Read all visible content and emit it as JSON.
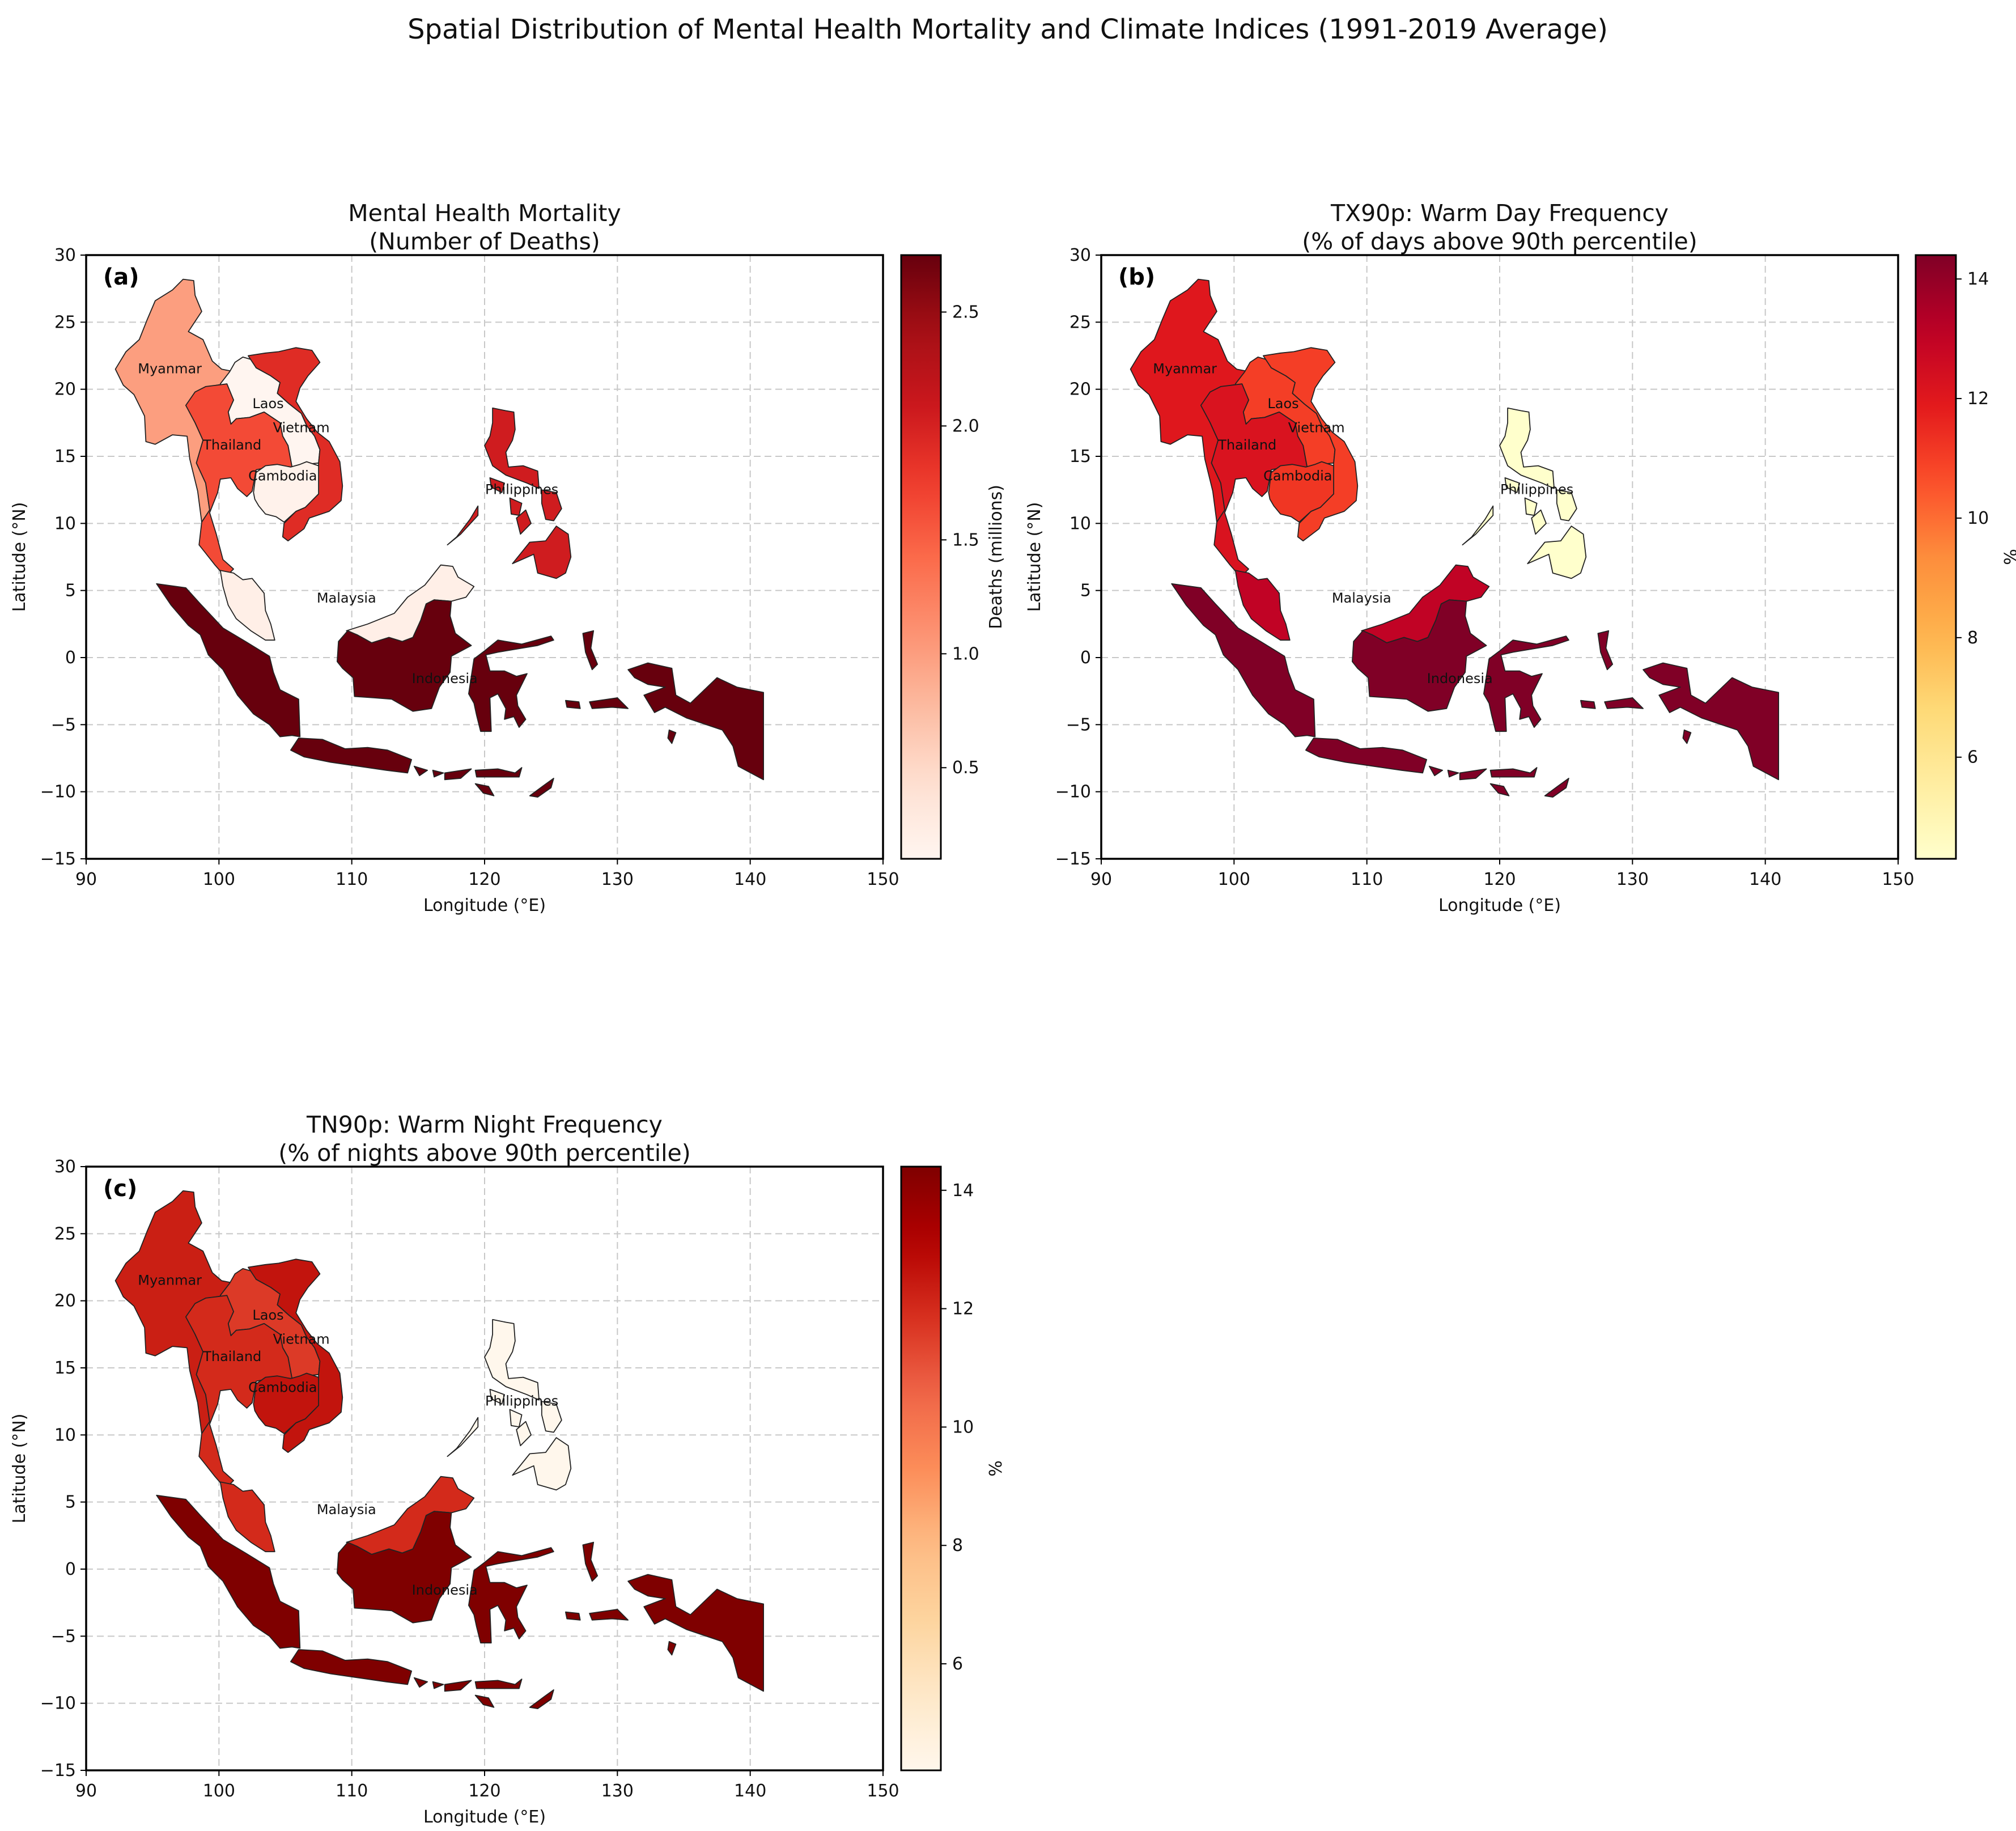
{
  "figure": {
    "suptitle": "Spatial Distribution of Mental Health Mortality and Climate Indices (1991-2019 Average)"
  },
  "axes": {
    "xlabel": "Longitude (°E)",
    "ylabel": "Latitude (°N)",
    "xlim": [
      90,
      150
    ],
    "ylim": [
      -15,
      30
    ],
    "xticks": [
      90,
      100,
      110,
      120,
      130,
      140,
      150
    ],
    "yticks": [
      30,
      25,
      20,
      15,
      10,
      5,
      0,
      -5,
      -10,
      -15
    ],
    "grid": true
  },
  "countries": [
    {
      "name": "Myanmar",
      "label_lon": 96.3,
      "label_lat": 21.2
    },
    {
      "name": "Laos",
      "label_lon": 103.7,
      "label_lat": 18.6
    },
    {
      "name": "Vietnam",
      "label_lon": 106.2,
      "label_lat": 16.8
    },
    {
      "name": "Thailand",
      "label_lon": 101.0,
      "label_lat": 15.5
    },
    {
      "name": "Cambodia",
      "label_lon": 104.8,
      "label_lat": 13.2
    },
    {
      "name": "Philippines",
      "label_lon": 122.8,
      "label_lat": 12.2
    },
    {
      "name": "Malaysia",
      "label_lon": 109.6,
      "label_lat": 4.1
    },
    {
      "name": "Indonesia",
      "label_lon": 117.0,
      "label_lat": -1.9
    }
  ],
  "panels": [
    {
      "id": "a",
      "panel_label": "(a)",
      "title": "Mental Health Mortality\n(Number of Deaths)",
      "colorbar_label": "Deaths (millions)",
      "cmap": "Reds",
      "vmin": 0.1,
      "vmax": 2.75,
      "colorbar_ticks": [
        "0.5",
        "1.0",
        "1.5",
        "2.0",
        "2.5"
      ],
      "values": {
        "Myanmar": 1.0,
        "Laos": 0.1,
        "Vietnam": 1.9,
        "Thailand": 1.65,
        "Cambodia": 0.15,
        "Philippines": 2.05,
        "Malaysia": 0.2,
        "Indonesia": 2.75
      }
    },
    {
      "id": "b",
      "panel_label": "(b)",
      "title": "TX90p: Warm Day Frequency\n(% of days above 90th percentile)",
      "colorbar_label": "%",
      "cmap": "YlOrRd",
      "vmin": 4.3,
      "vmax": 14.4,
      "colorbar_ticks": [
        "6",
        "8",
        "10",
        "12",
        "14"
      ],
      "values": {
        "Myanmar": 12.0,
        "Laos": 11.0,
        "Vietnam": 11.0,
        "Thailand": 12.2,
        "Cambodia": 11.2,
        "Philippines": 4.3,
        "Malaysia": 13.0,
        "Indonesia": 14.4
      }
    },
    {
      "id": "c",
      "panel_label": "(c)",
      "title": "TN90p: Warm Night Frequency\n(% of nights above 90th percentile)",
      "colorbar_label": "%",
      "cmap": "OrRd",
      "vmin": 4.2,
      "vmax": 14.4,
      "colorbar_ticks": [
        "6",
        "8",
        "10",
        "12",
        "14"
      ],
      "values": {
        "Myanmar": 12.3,
        "Laos": 11.6,
        "Vietnam": 12.6,
        "Thailand": 12.0,
        "Cambodia": 12.6,
        "Philippines": 4.2,
        "Malaysia": 12.0,
        "Indonesia": 14.4
      }
    }
  ]
}
